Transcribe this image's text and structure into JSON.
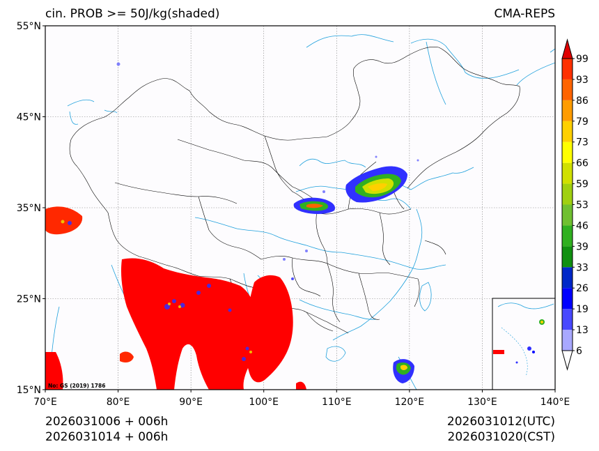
{
  "title_left": "cin. PROB >= 50J/kg(shaded)",
  "title_right": "CMA-REPS",
  "lat_labels": [
    "55°N",
    "45°N",
    "35°N",
    "25°N",
    "15°N"
  ],
  "lon_labels": [
    "70°E",
    "80°E",
    "90°E",
    "100°E",
    "110°E",
    "120°E",
    "130°E",
    "140°E"
  ],
  "map_notice": "No: GS (2019) 1786",
  "footer": {
    "left_line1": "2026031006  +  006h",
    "left_line2": "2026031014  +  006h",
    "right_line1": "2026031012(UTC)",
    "right_line2": "2026031020(CST)"
  },
  "colorbar": {
    "levels": [
      "6",
      "13",
      "19",
      "26",
      "33",
      "39",
      "46",
      "53",
      "59",
      "66",
      "73",
      "79",
      "86",
      "93",
      "99"
    ],
    "colors": {
      "below": "#ffffff",
      "bins": [
        "#a8a8ff",
        "#4848ff",
        "#0000ff",
        "#0028c8",
        "#109010",
        "#30b020",
        "#70c030",
        "#a0d010",
        "#d0e000",
        "#ffff00",
        "#ffd000",
        "#ff9c00",
        "#ff6400",
        "#ff3000"
      ],
      "above": "#e00000"
    }
  },
  "colors": {
    "shade_max": "#ff0000",
    "boundary": "#000000",
    "river_coast": "#1ea0dc",
    "grid": "#808080"
  }
}
